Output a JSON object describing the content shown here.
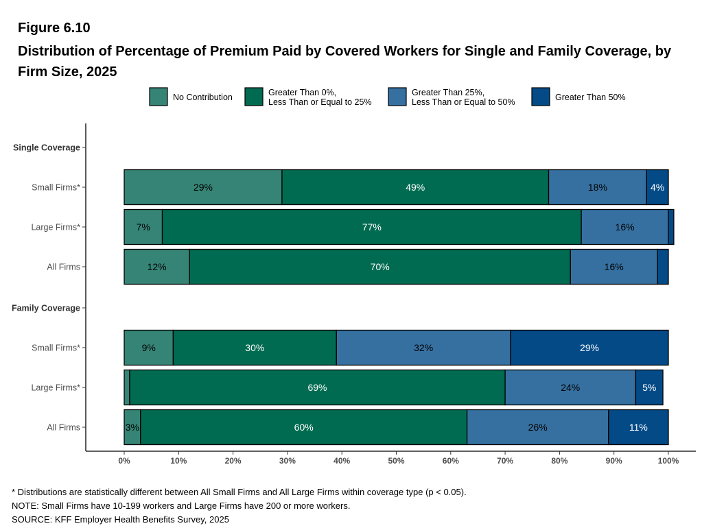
{
  "figure": {
    "label": "Figure 6.10",
    "title": "Distribution of Percentage of Premium Paid by Covered Workers for Single and Family Coverage, by Firm Size, 2025"
  },
  "notes": [
    "* Distributions are statistically different between All Small Firms and All Large Firms within coverage type (p < 0.05).",
    "NOTE: Small Firms have 10-199 workers and Large Firms have 200 or more workers.",
    "SOURCE: KFF Employer Health Benefits Survey, 2025"
  ],
  "chart_data": {
    "type": "bar",
    "orientation": "horizontal",
    "stacked": true,
    "xlim": [
      0,
      100
    ],
    "x_ticks": [
      "0%",
      "10%",
      "20%",
      "30%",
      "40%",
      "50%",
      "60%",
      "70%",
      "80%",
      "90%",
      "100%"
    ],
    "legend_position": "top",
    "series": [
      {
        "name": "No Contribution",
        "color": "#368476"
      },
      {
        "name": "Greater Than 0%,\nLess Than or Equal to 25%",
        "color": "#006b51"
      },
      {
        "name": "Greater Than 25%,\nLess Than or Equal to 50%",
        "color": "#3670a0"
      },
      {
        "name": "Greater Than 50%",
        "color": "#034a87"
      }
    ],
    "groups": [
      {
        "label": "Single Coverage",
        "rows": [
          {
            "label": "Small Firms*",
            "values": [
              29,
              49,
              18,
              4
            ],
            "labels": [
              "29%",
              "49%",
              "18%",
              "4%"
            ]
          },
          {
            "label": "Large Firms*",
            "values": [
              7,
              77,
              16,
              1
            ],
            "labels": [
              "7%",
              "77%",
              "16%",
              ""
            ]
          },
          {
            "label": "All Firms",
            "values": [
              12,
              70,
              16,
              2
            ],
            "labels": [
              "12%",
              "70%",
              "16%",
              ""
            ]
          }
        ]
      },
      {
        "label": "Family Coverage",
        "rows": [
          {
            "label": "Small Firms*",
            "values": [
              9,
              30,
              32,
              29
            ],
            "labels": [
              "9%",
              "30%",
              "32%",
              "29%"
            ]
          },
          {
            "label": "Large Firms*",
            "values": [
              1,
              69,
              24,
              5
            ],
            "labels": [
              "",
              "69%",
              "24%",
              "5%"
            ]
          },
          {
            "label": "All Firms",
            "values": [
              3,
              60,
              26,
              11
            ],
            "labels": [
              "3%",
              "60%",
              "26%",
              "11%"
            ]
          }
        ]
      }
    ]
  }
}
